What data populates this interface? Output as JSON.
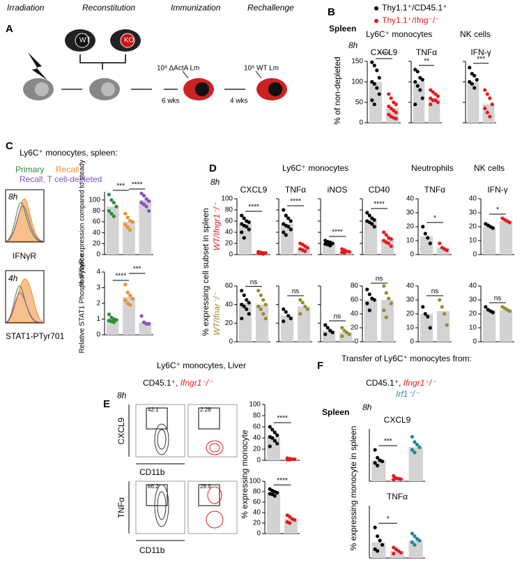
{
  "A": {
    "letter": "A",
    "stages": [
      "Irradiation",
      "Reconstitution",
      "Immunization",
      "Rechallenge"
    ],
    "wt": "WT",
    "ko": "KO",
    "dose1": "10⁶ ΔActA Lm",
    "dose2": "10⁶ WT Lm",
    "gap1": "6 wks",
    "gap2": "4 wks"
  },
  "B": {
    "letter": "B",
    "legend": [
      {
        "name": "Thy1.1⁺/CD45.1⁺",
        "color": "#000000"
      },
      {
        "name": "Thy1.1⁺/Ifng⁻/⁻",
        "color": "#e31a1c"
      }
    ],
    "tissue": "Spleen",
    "time": "8h",
    "group_titles": [
      "Ly6C⁺ monocytes",
      "NK cells"
    ],
    "y_label": "% of non-depleted",
    "plots": [
      {
        "title": "CXCL9",
        "ylim": [
          0,
          150
        ],
        "yticks": [
          0,
          50,
          100,
          150
        ],
        "groups": [
          {
            "color": "#000000",
            "bar": 100,
            "dots": [
              148,
              140,
              128,
              110,
              100,
              95,
              85,
              70,
              55,
              45
            ]
          },
          {
            "color": "#e31a1c",
            "bar": 35,
            "dots": [
              70,
              60,
              50,
              45,
              40,
              35,
              30,
              25,
              20,
              15,
              12,
              10
            ]
          }
        ],
        "sig": [
          {
            "label": "****",
            "from": 0,
            "to": 1
          }
        ]
      },
      {
        "title": "TNFα",
        "ylim": [
          0,
          150
        ],
        "yticks": [
          0,
          50,
          100,
          150
        ],
        "groups": [
          {
            "color": "#000000",
            "bar": 100,
            "dots": [
              130,
              125,
              110,
              105,
              100,
              90,
              80,
              60,
              45
            ]
          },
          {
            "color": "#e31a1c",
            "bar": 60,
            "dots": [
              80,
              75,
              70,
              65,
              60,
              55,
              55,
              50,
              45
            ]
          }
        ],
        "sig": [
          {
            "label": "**",
            "from": 0,
            "to": 1
          }
        ]
      },
      {
        "title": "IFN-γ",
        "ylim": [
          0,
          150
        ],
        "yticks": [
          0,
          50,
          100,
          150
        ],
        "groups": [
          {
            "color": "#000000",
            "bar": 100,
            "dots": [
              135,
              120,
              115,
              105,
              100,
              95,
              85
            ]
          },
          {
            "color": "#e31a1c",
            "bar": 45,
            "dots": [
              80,
              70,
              60,
              45,
              35,
              25,
              15
            ]
          }
        ],
        "sig": [
          {
            "label": "***",
            "from": 0,
            "to": 1
          }
        ]
      }
    ]
  },
  "C": {
    "letter": "C",
    "title": "Ly6C⁺ monocytes, spleen:",
    "legend": [
      {
        "name": "Primary",
        "color": "#2e8b3a"
      },
      {
        "name": "Recall",
        "color": "#f28c28"
      },
      {
        "name": "Recall, T cell-depleted",
        "color": "#8a4fbf"
      }
    ],
    "times": [
      "8h",
      "4h"
    ],
    "hist_labels": [
      "IFNγR",
      "STAT1-PTyr701"
    ],
    "plots": [
      {
        "y_label": "% IFNγR expression compared to steady",
        "ylim": [
          0,
          115
        ],
        "yticks": [
          0,
          20,
          40,
          60,
          80,
          100
        ],
        "groups": [
          {
            "color": "#2e8b3a",
            "bar": 88,
            "dots": [
              110,
              100,
              95,
              88,
              80,
              75,
              70
            ]
          },
          {
            "color": "#f28c28",
            "bar": 60,
            "dots": [
              75,
              68,
              62,
              60,
              55,
              50,
              45
            ]
          },
          {
            "color": "#8a4fbf",
            "bar": 100,
            "dots": [
              112,
              108,
              102,
              98,
              95,
              92,
              88,
              80
            ]
          }
        ],
        "sig": [
          {
            "label": "***",
            "from": 0,
            "to": 1
          },
          {
            "label": "****",
            "from": 1,
            "to": 2
          }
        ]
      },
      {
        "y_label": "Relative STAT1 Phosphorylation",
        "ylim": [
          0,
          4
        ],
        "yticks": [
          0,
          1,
          2,
          3,
          4
        ],
        "groups": [
          {
            "color": "#2e8b3a",
            "bar": 1.0,
            "dots": [
              1.3,
              1.1,
              1.0,
              0.95,
              0.9,
              0.85,
              0.8
            ]
          },
          {
            "color": "#f28c28",
            "bar": 2.4,
            "dots": [
              3.2,
              2.7,
              2.5,
              2.3,
              2.2,
              2.0,
              1.9
            ]
          },
          {
            "color": "#8a4fbf",
            "bar": 0.8,
            "dots": [
              1.2,
              0.8,
              0.7,
              0.7
            ]
          }
        ],
        "sig": [
          {
            "label": "****",
            "from": 0,
            "to": 1
          },
          {
            "label": "***",
            "from": 1,
            "to": 2
          }
        ]
      }
    ]
  },
  "D": {
    "letter": "D",
    "time": "8h",
    "group_titles": [
      "Ly6C⁺ monocytes",
      "Neutrophils",
      "NK cells"
    ],
    "row_labels": [
      "WT/Ifngr1⁻/⁻",
      "WT/Ifnar⁻/⁻"
    ],
    "y_label": "% expressing cell subset in spleen",
    "plots": [
      {
        "title": "CXCL9",
        "ylim": [
          0,
          100
        ],
        "yticks": [
          0,
          20,
          40,
          60,
          80,
          100
        ],
        "groups": [
          {
            "color": "#000000",
            "bar": 55,
            "dots": [
              70,
              65,
              60,
              58,
              55,
              52,
              50,
              45,
              40,
              30
            ]
          },
          {
            "color": "#e31a1c",
            "bar": 3,
            "dots": [
              5,
              4,
              3,
              3,
              2,
              2,
              1
            ]
          }
        ],
        "sig": [
          {
            "label": "****",
            "from": 0,
            "to": 1
          }
        ]
      },
      {
        "title": "TNFα",
        "ylim": [
          0,
          100
        ],
        "yticks": [
          0,
          20,
          40,
          60,
          80,
          100
        ],
        "groups": [
          {
            "color": "#000000",
            "bar": 55,
            "dots": [
              80,
              70,
              65,
              60,
              55,
              52,
              50,
              45,
              40,
              35
            ]
          },
          {
            "color": "#e31a1c",
            "bar": 12,
            "dots": [
              20,
              18,
              15,
              12,
              10,
              8,
              6
            ]
          }
        ],
        "sig": [
          {
            "label": "****",
            "from": 0,
            "to": 1
          }
        ]
      },
      {
        "title": "iNOS",
        "ylim": [
          0,
          100
        ],
        "yticks": [
          0,
          20,
          40,
          60,
          80,
          100
        ],
        "groups": [
          {
            "color": "#000000",
            "bar": 20,
            "dots": [
              25,
              23,
              22,
              20,
              19,
              18,
              16
            ]
          },
          {
            "color": "#e31a1c",
            "bar": 5,
            "dots": [
              10,
              8,
              6,
              5,
              4,
              3
            ]
          }
        ],
        "sig": [
          {
            "label": "****",
            "from": 0,
            "to": 1
          }
        ]
      },
      {
        "title": "CD40",
        "ylim": [
          0,
          100
        ],
        "yticks": [
          0,
          20,
          40,
          60,
          80,
          100
        ],
        "groups": [
          {
            "color": "#000000",
            "bar": 60,
            "dots": [
              75,
              70,
              65,
              62,
              60,
              58,
              55,
              50
            ]
          },
          {
            "color": "#e31a1c",
            "bar": 28,
            "dots": [
              40,
              35,
              30,
              28,
              25,
              22,
              20,
              15
            ]
          }
        ],
        "sig": [
          {
            "label": "****",
            "from": 0,
            "to": 1
          }
        ]
      },
      {
        "title": "TNFα",
        "ylim": [
          0,
          40
        ],
        "yticks": [
          0,
          10,
          20,
          30,
          40
        ],
        "groups": [
          {
            "color": "#000000",
            "bar": 13,
            "dots": [
              20,
              15,
              12,
              8
            ]
          },
          {
            "color": "#e31a1c",
            "bar": 5,
            "dots": [
              8,
              5,
              4,
              3
            ]
          }
        ],
        "sig": [
          {
            "label": "*",
            "from": 0,
            "to": 1
          }
        ]
      },
      {
        "title": "IFN-γ",
        "ylim": [
          0,
          40
        ],
        "yticks": [
          0,
          10,
          20,
          30,
          40
        ],
        "groups": [
          {
            "color": "#000000",
            "bar": 20,
            "dots": [
              22,
              21,
              20,
              19
            ]
          },
          {
            "color": "#e31a1c",
            "bar": 24,
            "dots": [
              26,
              25,
              24,
              23
            ]
          }
        ],
        "sig": [
          {
            "label": "*",
            "from": 0,
            "to": 1
          }
        ]
      },
      {
        "ylim": [
          0,
          60
        ],
        "yticks": [
          0,
          20,
          40,
          60
        ],
        "groups": [
          {
            "color": "#000000",
            "bar": 42,
            "dots": [
              55,
              50,
              45,
              42,
              40,
              38,
              35,
              30,
              25
            ]
          },
          {
            "color": "#9a8a2a",
            "bar": 40,
            "dots": [
              55,
              50,
              45,
              40,
              38,
              35,
              30,
              25
            ]
          }
        ],
        "sig": [
          {
            "label": "ns",
            "from": 0,
            "to": 1
          }
        ]
      },
      {
        "ylim": [
          0,
          60
        ],
        "yticks": [
          0,
          20,
          40,
          60
        ],
        "groups": [
          {
            "color": "#000000",
            "bar": 28,
            "dots": [
              35,
              32,
              28,
              25,
              22
            ]
          },
          {
            "color": "#9a8a2a",
            "bar": 38,
            "dots": [
              45,
              42,
              38,
              35,
              30
            ]
          }
        ],
        "sig": [
          {
            "label": "ns",
            "from": 0,
            "to": 1
          }
        ]
      },
      {
        "ylim": [
          0,
          60
        ],
        "yticks": [
          0,
          20,
          40,
          60
        ],
        "groups": [
          {
            "color": "#000000",
            "bar": 12,
            "dots": [
              18,
              15,
              12,
              10,
              8
            ]
          },
          {
            "color": "#9a8a2a",
            "bar": 10,
            "dots": [
              15,
              12,
              10,
              8,
              6
            ]
          }
        ],
        "sig": [
          {
            "label": "ns",
            "from": 0,
            "to": 1
          }
        ]
      },
      {
        "ylim": [
          0,
          80
        ],
        "yticks": [
          0,
          20,
          40,
          60,
          80
        ],
        "groups": [
          {
            "color": "#000000",
            "bar": 60,
            "dots": [
              75,
              68,
              62,
              60,
              55,
              45
            ]
          },
          {
            "color": "#9a8a2a",
            "bar": 60,
            "dots": [
              80,
              70,
              62,
              55,
              45,
              35
            ]
          }
        ],
        "sig": [
          {
            "label": "ns",
            "from": 0,
            "to": 1
          }
        ]
      },
      {
        "ylim": [
          0,
          40
        ],
        "yticks": [
          0,
          10,
          20,
          30,
          40
        ],
        "groups": [
          {
            "color": "#000000",
            "bar": 20,
            "dots": [
              25,
              20,
              18,
              10
            ]
          },
          {
            "color": "#9a8a2a",
            "bar": 22,
            "dots": [
              30,
              25,
              20,
              12
            ]
          }
        ],
        "sig": [
          {
            "label": "ns",
            "from": 0,
            "to": 1
          }
        ]
      },
      {
        "ylim": [
          0,
          40
        ],
        "yticks": [
          0,
          10,
          20,
          30,
          40
        ],
        "groups": [
          {
            "color": "#000000",
            "bar": 23,
            "dots": [
              25,
              23,
              22,
              21
            ]
          },
          {
            "color": "#9a8a2a",
            "bar": 23,
            "dots": [
              25,
              24,
              23,
              22
            ]
          }
        ],
        "sig": [
          {
            "label": "ns",
            "from": 0,
            "to": 1
          }
        ]
      }
    ]
  },
  "E": {
    "letter": "E",
    "title": "Ly6C⁺ monocytes, Liver",
    "strains": [
      "CD45.1⁺,",
      "Ifngr1⁻/⁻"
    ],
    "time": "8h",
    "gates": [
      "42.1",
      "2.28",
      "66.2",
      "28.9"
    ],
    "flow_axes": [
      "CXCL9",
      "CD11b",
      "TNFα",
      "CD11b"
    ],
    "y_label": "% expressing monocyte",
    "plots": [
      {
        "ylim": [
          0,
          100
        ],
        "yticks": [
          0,
          20,
          40,
          60,
          80,
          100
        ],
        "groups": [
          {
            "color": "#000000",
            "bar": 42,
            "dots": [
              60,
              55,
              50,
              45,
              42,
              40,
              35,
              30,
              25
            ]
          },
          {
            "color": "#e31a1c",
            "bar": 2,
            "dots": [
              4,
              3,
              2,
              2,
              1,
              1
            ]
          }
        ],
        "sig": [
          {
            "label": "****",
            "from": 0,
            "to": 1
          }
        ]
      },
      {
        "ylim": [
          0,
          100
        ],
        "yticks": [
          0,
          20,
          40,
          60,
          80,
          100
        ],
        "groups": [
          {
            "color": "#000000",
            "bar": 78,
            "dots": [
              85,
              82,
              80,
              78,
              76,
              75,
              72
            ]
          },
          {
            "color": "#e31a1c",
            "bar": 28,
            "dots": [
              35,
              32,
              28,
              26,
              22,
              20
            ]
          }
        ],
        "sig": [
          {
            "label": "****",
            "from": 0,
            "to": 1
          }
        ]
      }
    ]
  },
  "F": {
    "letter": "F",
    "title": "Transfer of Ly6C⁺ monocytes from:",
    "strains": [
      "CD45.1⁺,",
      "Ifngr1⁻/⁻",
      "Irf1⁻/⁻"
    ],
    "tissue": "Spleen",
    "time": "8h",
    "y_label": "% expressing monocyte in spleen",
    "plots": [
      {
        "title": "CXCL9",
        "ylim": [
          0,
          100
        ],
        "groups": [
          {
            "color": "#000000",
            "bar": 40,
            "dots": [
              60,
              45,
              40,
              38,
              35,
              30
            ]
          },
          {
            "color": "#e31a1c",
            "bar": 5,
            "dots": [
              10,
              6,
              5,
              4,
              3
            ]
          },
          {
            "color": "#1a8a9a",
            "bar": 65,
            "dots": [
              85,
              75,
              70,
              65,
              60,
              55
            ]
          }
        ],
        "sig": [
          {
            "label": "***",
            "from": 0,
            "to": 1
          }
        ]
      },
      {
        "title": "TNFα",
        "ylim": [
          0,
          60
        ],
        "groups": [
          {
            "color": "#000000",
            "bar": 18,
            "dots": [
              35,
              25,
              20,
              15,
              10,
              8
            ]
          },
          {
            "color": "#e31a1c",
            "bar": 8,
            "dots": [
              12,
              10,
              8,
              6,
              5
            ]
          },
          {
            "color": "#1a8a9a",
            "bar": 20,
            "dots": [
              28,
              25,
              22,
              20,
              18,
              15
            ]
          }
        ],
        "sig": [
          {
            "label": "*",
            "from": 0,
            "to": 1
          }
        ]
      }
    ]
  }
}
